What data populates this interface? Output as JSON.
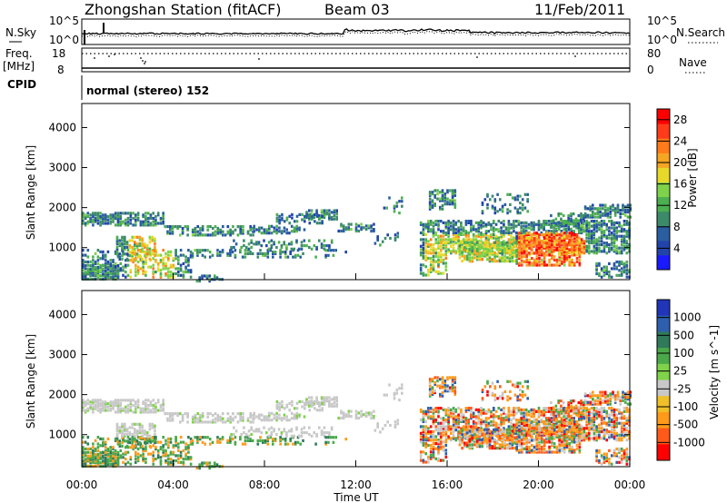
{
  "header": {
    "station": "Zhongshan Station (fitACF)",
    "beam": "Beam 03",
    "date": "11/Feb/2011"
  },
  "top_panels": {
    "nsky_label": "N.Sky",
    "nsky_ticks": [
      "10^5",
      "10^0"
    ],
    "nsearch_label": "N.Search",
    "nsearch_ticks": [
      "10^5",
      "10^0"
    ],
    "freq_label": "Freq.",
    "freq_unit": "[MHz]",
    "freq_ticks": [
      "18",
      "8"
    ],
    "nave_label": "Nave",
    "nave_ticks": [
      "80",
      "0"
    ],
    "cpid_label": "CPID",
    "cpid_text": "normal (stereo) 152"
  },
  "colors": {
    "power_scale": [
      "#1a1aff",
      "#2244aa",
      "#2a5ea0",
      "#3c8a6a",
      "#4caf50",
      "#7ed34a",
      "#e8d82a",
      "#f5a623",
      "#ff7a1a",
      "#ff3b1a",
      "#ff0000"
    ],
    "velocity_scale": [
      "#2035b8",
      "#2e5fae",
      "#2f7a5a",
      "#4aa84a",
      "#7fd24a",
      "#c8c8c8",
      "#f0c02a",
      "#ff9a1a",
      "#ff5a1a",
      "#ff0000"
    ]
  },
  "chart_data": [
    {
      "type": "heatmap",
      "panel": "power",
      "ylabel": "Slant Range [km]",
      "yticks": [
        "1000",
        "2000",
        "3000",
        "4000"
      ],
      "ylim": [
        200,
        4600
      ],
      "xlim": [
        0,
        24
      ],
      "colorbar_label": "Power [dB]",
      "colorbar_ticks": [
        "4",
        "8",
        "12",
        "16",
        "20",
        "24",
        "28"
      ],
      "colorbar_range": [
        0,
        30
      ]
    },
    {
      "type": "heatmap",
      "panel": "velocity",
      "ylabel": "Slant Range [km]",
      "yticks": [
        "1000",
        "2000",
        "3000",
        "4000"
      ],
      "ylim": [
        200,
        4600
      ],
      "xlim": [
        0,
        24
      ],
      "colorbar_label": "Velocity [m s^-1]",
      "colorbar_ticks": [
        "1000",
        "500",
        "100",
        "25",
        "-25",
        "-100",
        "-500",
        "-1000"
      ]
    }
  ],
  "time_axis": {
    "ticks": [
      "00:00",
      "04:00",
      "08:00",
      "12:00",
      "16:00",
      "20:00",
      "00:00"
    ],
    "xlabel": "Time UT"
  }
}
